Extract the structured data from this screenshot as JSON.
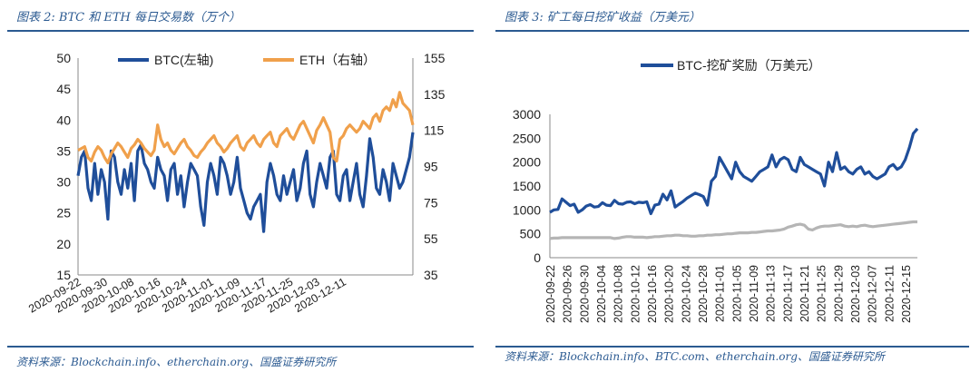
{
  "left_panel": {
    "title": "图表 2: BTC 和 ETH 每日交易数（万个）",
    "source": "资料来源：Blockchain.info、etherchain.org、国盛证券研究所"
  },
  "right_panel": {
    "title": "图表 3: 矿工每日挖矿收益（万美元）",
    "source": "资料来源：Blockchain.info、BTC.com、etherchain.org、国盛证券研究所"
  },
  "chart_data": [
    {
      "type": "line",
      "title": "",
      "x_ticks": [
        "2020-09-22",
        "2020-09-30",
        "2020-10-08",
        "2020-10-16",
        "2020-10-24",
        "2020-11-01",
        "2020-11-09",
        "2020-11-17",
        "2020-11-25",
        "2020-12-03",
        "2020-12-11"
      ],
      "y_left": {
        "ticks": [
          15,
          20,
          25,
          30,
          35,
          40,
          45,
          50
        ],
        "range": [
          15,
          50
        ]
      },
      "y_right": {
        "ticks": [
          35,
          55,
          75,
          95,
          115,
          135,
          155
        ],
        "range": [
          35,
          155
        ]
      },
      "legend": "top-center",
      "grid": false,
      "series": [
        {
          "name": "BTC(左轴)",
          "axis": "left",
          "color": "#1f4e9a",
          "values": [
            31,
            34,
            35,
            29,
            27,
            33,
            28,
            32,
            30,
            24,
            35,
            34,
            30,
            28,
            32,
            29,
            33,
            27,
            35,
            36,
            33,
            32,
            30,
            29,
            34,
            32,
            31,
            27,
            32,
            33,
            28,
            31,
            26,
            30,
            33,
            32,
            31,
            26,
            23,
            30,
            33,
            31,
            28,
            34,
            33,
            31,
            28,
            30,
            34,
            29,
            27,
            25,
            24,
            26,
            27,
            28,
            22,
            30,
            33,
            31,
            28,
            27,
            31,
            28,
            30,
            32,
            27,
            29,
            33,
            35,
            28,
            26,
            30,
            33,
            31,
            29,
            34,
            35,
            28,
            27,
            31,
            32,
            27,
            30,
            33,
            28,
            26,
            31,
            37,
            34,
            29,
            28,
            32,
            30,
            27,
            33,
            31,
            29,
            30,
            32,
            34,
            38
          ]
        },
        {
          "name": "ETH（右轴）",
          "axis": "right",
          "color": "#f0a04b",
          "values": [
            104,
            105,
            106,
            100,
            98,
            103,
            106,
            104,
            100,
            97,
            102,
            105,
            108,
            106,
            103,
            100,
            105,
            107,
            110,
            108,
            105,
            103,
            101,
            104,
            118,
            110,
            106,
            108,
            104,
            102,
            105,
            108,
            110,
            106,
            104,
            101,
            100,
            103,
            105,
            108,
            110,
            112,
            108,
            106,
            103,
            105,
            108,
            110,
            112,
            106,
            104,
            108,
            110,
            112,
            108,
            106,
            110,
            112,
            114,
            108,
            106,
            112,
            114,
            116,
            112,
            110,
            114,
            118,
            120,
            116,
            112,
            108,
            115,
            118,
            122,
            118,
            114,
            100,
            98,
            110,
            112,
            116,
            118,
            116,
            114,
            116,
            120,
            118,
            116,
            122,
            124,
            120,
            126,
            128,
            126,
            132,
            128,
            136,
            130,
            128,
            126,
            118
          ]
        }
      ]
    },
    {
      "type": "line",
      "title": "",
      "x_ticks": [
        "2020-09-22",
        "2020-09-26",
        "2020-09-30",
        "2020-10-04",
        "2020-10-08",
        "2020-10-12",
        "2020-10-16",
        "2020-10-20",
        "2020-10-24",
        "2020-10-28",
        "2020-11-01",
        "2020-11-05",
        "2020-11-09",
        "2020-11-13",
        "2020-11-17",
        "2020-11-21",
        "2020-11-25",
        "2020-11-29",
        "2020-12-03",
        "2020-12-07",
        "2020-12-11",
        "2020-12-15"
      ],
      "y": {
        "ticks": [
          0,
          500,
          1000,
          1500,
          2000,
          2500,
          3000
        ],
        "range": [
          0,
          3000
        ]
      },
      "legend": "top-center",
      "grid": false,
      "series": [
        {
          "name": "BTC-挖矿奖励（万美元）",
          "color": "#1f4e9a",
          "values": [
            950,
            1000,
            1010,
            1230,
            1160,
            1090,
            1120,
            950,
            1000,
            1080,
            1110,
            1060,
            1070,
            1150,
            1100,
            1090,
            1200,
            1130,
            1120,
            1160,
            1170,
            1130,
            1160,
            1150,
            1170,
            920,
            1100,
            1120,
            1330,
            1210,
            1400,
            1060,
            1120,
            1180,
            1250,
            1300,
            1350,
            1320,
            1280,
            1100,
            1600,
            1700,
            2100,
            1950,
            1800,
            1650,
            2000,
            1800,
            1700,
            1650,
            1600,
            1700,
            1800,
            1850,
            1900,
            2150,
            1900,
            2050,
            2100,
            2050,
            1850,
            1800,
            2100,
            1950,
            1900,
            1850,
            1800,
            1750,
            1500,
            2000,
            1800,
            2200,
            1850,
            1900,
            1800,
            1750,
            1850,
            1900,
            1750,
            1800,
            1700,
            1650,
            1700,
            1750,
            1900,
            1950,
            1850,
            1900,
            2050,
            2300,
            2600,
            2700
          ]
        },
        {
          "name": "",
          "color": "#b5b5b5",
          "values": [
            400,
            410,
            410,
            420,
            420,
            420,
            420,
            420,
            420,
            420,
            420,
            420,
            420,
            420,
            420,
            420,
            400,
            410,
            430,
            440,
            440,
            430,
            430,
            430,
            420,
            430,
            440,
            440,
            450,
            460,
            460,
            470,
            470,
            460,
            460,
            450,
            450,
            460,
            460,
            470,
            470,
            480,
            480,
            490,
            500,
            500,
            510,
            520,
            520,
            520,
            530,
            530,
            540,
            550,
            560,
            560,
            570,
            580,
            600,
            640,
            660,
            690,
            700,
            680,
            600,
            580,
            620,
            650,
            660,
            660,
            670,
            680,
            690,
            660,
            650,
            660,
            650,
            670,
            680,
            660,
            650,
            660,
            670,
            680,
            690,
            700,
            710,
            720,
            730,
            740,
            750,
            750
          ]
        }
      ]
    }
  ]
}
